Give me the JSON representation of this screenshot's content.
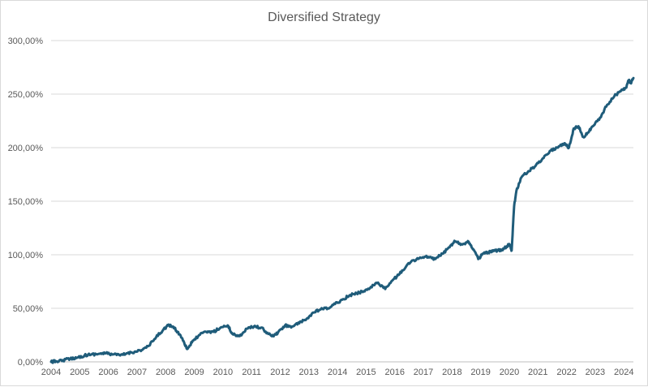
{
  "chart_data": {
    "type": "line",
    "title": "Diversified Strategy",
    "xlabel": "",
    "ylabel": "",
    "x_axis": {
      "type": "date",
      "range": [
        "2004-01",
        "2024-05"
      ],
      "tick_labels": [
        "2004",
        "2005",
        "2006",
        "2007",
        "2008",
        "2009",
        "2010",
        "2011",
        "2012",
        "2013",
        "2014",
        "2015",
        "2016",
        "2017",
        "2018",
        "2019",
        "2020",
        "2021",
        "2022",
        "2023",
        "2024"
      ]
    },
    "y_axis": {
      "range": [
        0,
        300
      ],
      "unit": "percent",
      "tick_values": [
        0,
        50,
        100,
        150,
        200,
        250,
        300
      ],
      "tick_labels": [
        "0,00%",
        "50,00%",
        "100,00%",
        "150,00%",
        "200,00%",
        "250,00%",
        "300,00%"
      ]
    },
    "grid": {
      "horizontal": true,
      "vertical": false
    },
    "legend": "none",
    "series": [
      {
        "color": "#1f5c7a",
        "points": [
          [
            "2004-01",
            0
          ],
          [
            "2004-03",
            0.5
          ],
          [
            "2004-06",
            1.5
          ],
          [
            "2004-09",
            3
          ],
          [
            "2004-12",
            4
          ],
          [
            "2005-03",
            6
          ],
          [
            "2005-06",
            7
          ],
          [
            "2005-09",
            7.5
          ],
          [
            "2005-12",
            8
          ],
          [
            "2006-03",
            7
          ],
          [
            "2006-06",
            6
          ],
          [
            "2006-09",
            8
          ],
          [
            "2006-12",
            9.5
          ],
          [
            "2007-03",
            11
          ],
          [
            "2007-06",
            15
          ],
          [
            "2007-09",
            23
          ],
          [
            "2007-12",
            30
          ],
          [
            "2008-02",
            34
          ],
          [
            "2008-04",
            33
          ],
          [
            "2008-06",
            28
          ],
          [
            "2008-08",
            22
          ],
          [
            "2008-10",
            12
          ],
          [
            "2008-12",
            18
          ],
          [
            "2009-03",
            25
          ],
          [
            "2009-06",
            28
          ],
          [
            "2009-09",
            28
          ],
          [
            "2009-12",
            32
          ],
          [
            "2010-03",
            34
          ],
          [
            "2010-05",
            26
          ],
          [
            "2010-08",
            24
          ],
          [
            "2010-11",
            31
          ],
          [
            "2011-02",
            33
          ],
          [
            "2011-05",
            32
          ],
          [
            "2011-08",
            26
          ],
          [
            "2011-10",
            24
          ],
          [
            "2011-12",
            27
          ],
          [
            "2012-03",
            34
          ],
          [
            "2012-06",
            33
          ],
          [
            "2012-09",
            36
          ],
          [
            "2012-12",
            40
          ],
          [
            "2013-03",
            46
          ],
          [
            "2013-06",
            49
          ],
          [
            "2013-09",
            50
          ],
          [
            "2013-12",
            54
          ],
          [
            "2014-03",
            58
          ],
          [
            "2014-06",
            62
          ],
          [
            "2014-09",
            64
          ],
          [
            "2014-12",
            66
          ],
          [
            "2015-03",
            70
          ],
          [
            "2015-06",
            74
          ],
          [
            "2015-09",
            68
          ],
          [
            "2015-12",
            76
          ],
          [
            "2016-03",
            82
          ],
          [
            "2016-06",
            90
          ],
          [
            "2016-09",
            95
          ],
          [
            "2016-12",
            97
          ],
          [
            "2017-03",
            98
          ],
          [
            "2017-06",
            96
          ],
          [
            "2017-09",
            101
          ],
          [
            "2017-12",
            107
          ],
          [
            "2018-02",
            113
          ],
          [
            "2018-05",
            110
          ],
          [
            "2018-08",
            112
          ],
          [
            "2018-10",
            105
          ],
          [
            "2018-12",
            96
          ],
          [
            "2019-02",
            101
          ],
          [
            "2019-04",
            102
          ],
          [
            "2019-06",
            103
          ],
          [
            "2019-08",
            104
          ],
          [
            "2019-10",
            105
          ],
          [
            "2019-12",
            108
          ],
          [
            "2020-01",
            110
          ],
          [
            "2020-02",
            104
          ],
          [
            "2020-03",
            145
          ],
          [
            "2020-04",
            160
          ],
          [
            "2020-06",
            172
          ],
          [
            "2020-09",
            178
          ],
          [
            "2020-12",
            183
          ],
          [
            "2021-03",
            190
          ],
          [
            "2021-06",
            197
          ],
          [
            "2021-09",
            200
          ],
          [
            "2021-12",
            204
          ],
          [
            "2022-02",
            200
          ],
          [
            "2022-04",
            218
          ],
          [
            "2022-06",
            220
          ],
          [
            "2022-08",
            210
          ],
          [
            "2022-10",
            214
          ],
          [
            "2022-12",
            220
          ],
          [
            "2023-03",
            228
          ],
          [
            "2023-06",
            240
          ],
          [
            "2023-09",
            248
          ],
          [
            "2023-12",
            254
          ],
          [
            "2024-02",
            256
          ],
          [
            "2024-03",
            263
          ],
          [
            "2024-04",
            260
          ],
          [
            "2024-05",
            265
          ]
        ]
      }
    ]
  }
}
